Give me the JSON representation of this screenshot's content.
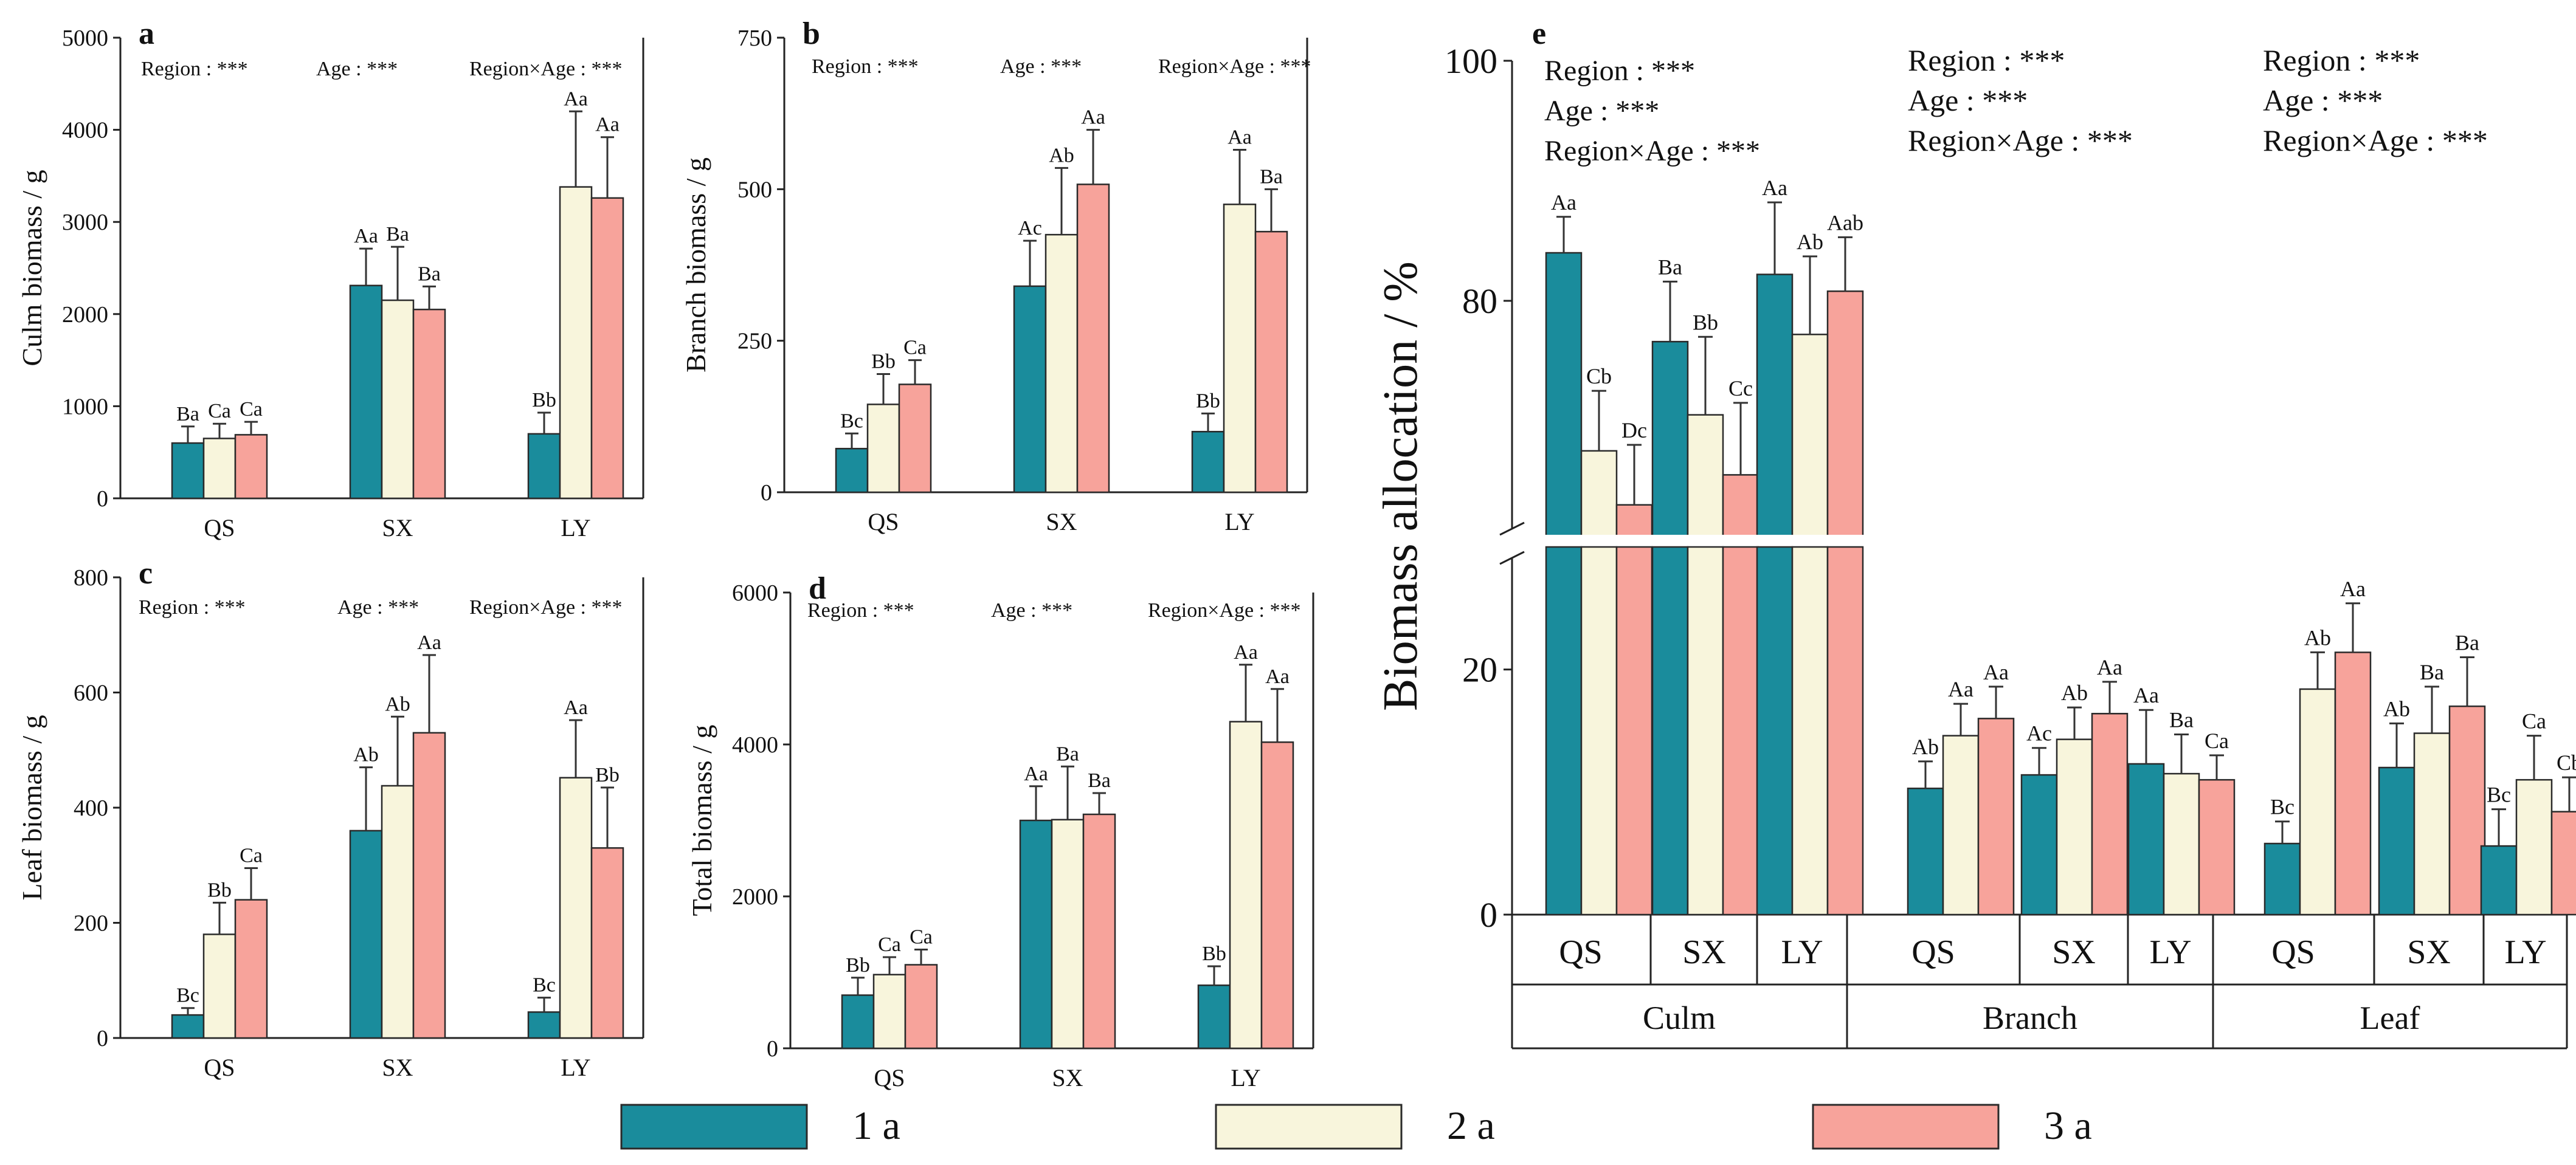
{
  "legend": {
    "items": [
      {
        "label": "1 a",
        "color": "#1a8c9c"
      },
      {
        "label": "2 a",
        "color": "#f8f5dc"
      },
      {
        "label": "3 a",
        "color": "#f7a39b"
      }
    ]
  },
  "chart_data": [
    {
      "id": "a",
      "panel_label": "a",
      "type": "bar",
      "ylabel": "Culm biomass / g",
      "ylim": [
        0,
        5000
      ],
      "yticks": [
        "0",
        "1000",
        "2000",
        "3000",
        "4000",
        "5000"
      ],
      "categories": [
        "QS",
        "SX",
        "LY"
      ],
      "annotations": [
        "Region : ***",
        "Age : ***",
        "Region×Age : ***"
      ],
      "series": [
        {
          "name": "1 a",
          "values": [
            600,
            2310,
            700
          ],
          "errors": [
            180,
            400,
            230
          ],
          "letters": [
            "Ba",
            "Aa",
            "Bb"
          ]
        },
        {
          "name": "2 a",
          "values": [
            650,
            2150,
            3380
          ],
          "errors": [
            160,
            580,
            820
          ],
          "letters": [
            "Ca",
            "Ba",
            "Aa"
          ]
        },
        {
          "name": "3 a",
          "values": [
            690,
            2050,
            3260
          ],
          "errors": [
            140,
            250,
            660
          ],
          "letters": [
            "Ca",
            "Ba",
            "Aa"
          ]
        }
      ]
    },
    {
      "id": "b",
      "panel_label": "b",
      "type": "bar",
      "ylabel": "Branch biomass / g",
      "ylim": [
        0,
        750
      ],
      "yticks": [
        "0",
        "250",
        "500",
        "750"
      ],
      "categories": [
        "QS",
        "SX",
        "LY"
      ],
      "annotations": [
        "Region : ***",
        "Age : ***",
        "Region×Age : ***"
      ],
      "series": [
        {
          "name": "1 a",
          "values": [
            72,
            340,
            100
          ],
          "errors": [
            25,
            75,
            30
          ],
          "letters": [
            "Bc",
            "Ac",
            "Bb"
          ]
        },
        {
          "name": "2 a",
          "values": [
            145,
            425,
            475
          ],
          "errors": [
            50,
            110,
            90
          ],
          "letters": [
            "Bb",
            "Ab",
            "Aa"
          ]
        },
        {
          "name": "3 a",
          "values": [
            178,
            508,
            430
          ],
          "errors": [
            40,
            90,
            70
          ],
          "letters": [
            "Ca",
            "Aa",
            "Ba"
          ]
        }
      ]
    },
    {
      "id": "c",
      "panel_label": "c",
      "type": "bar",
      "ylabel": "Leaf biomass / g",
      "ylim": [
        0,
        800
      ],
      "yticks": [
        "0",
        "200",
        "400",
        "600",
        "800"
      ],
      "categories": [
        "QS",
        "SX",
        "LY"
      ],
      "annotations": [
        "Region : ***",
        "Age : ***",
        "Region×Age : ***"
      ],
      "series": [
        {
          "name": "1 a",
          "values": [
            40,
            360,
            45
          ],
          "errors": [
            12,
            110,
            25
          ],
          "letters": [
            "Bc",
            "Ab",
            "Bc"
          ]
        },
        {
          "name": "2 a",
          "values": [
            180,
            438,
            452
          ],
          "errors": [
            55,
            120,
            100
          ],
          "letters": [
            "Bb",
            "Ab",
            "Aa"
          ]
        },
        {
          "name": "3 a",
          "values": [
            240,
            530,
            330
          ],
          "errors": [
            55,
            135,
            105
          ],
          "letters": [
            "Ca",
            "Aa",
            "Bb"
          ]
        }
      ]
    },
    {
      "id": "d",
      "panel_label": "d",
      "type": "bar",
      "ylabel": "Total biomass / g",
      "ylim": [
        0,
        6000
      ],
      "yticks": [
        "0",
        "2000",
        "4000",
        "6000"
      ],
      "categories": [
        "QS",
        "SX",
        "LY"
      ],
      "annotations": [
        "Region : ***",
        "Age : ***",
        "Region×Age : ***"
      ],
      "series": [
        {
          "name": "1 a",
          "values": [
            700,
            3000,
            830
          ],
          "errors": [
            230,
            450,
            250
          ],
          "letters": [
            "Bb",
            "Aa",
            "Bb"
          ]
        },
        {
          "name": "2 a",
          "values": [
            970,
            3010,
            4300
          ],
          "errors": [
            230,
            700,
            750
          ],
          "letters": [
            "Ca",
            "Ba",
            "Aa"
          ]
        },
        {
          "name": "3 a",
          "values": [
            1100,
            3080,
            4030
          ],
          "errors": [
            200,
            280,
            700
          ],
          "letters": [
            "Ca",
            "Ba",
            "Aa"
          ]
        }
      ]
    },
    {
      "id": "e",
      "panel_label": "e",
      "type": "bar",
      "ylabel": "Biomass allocation / %",
      "y_break": {
        "lower": [
          0,
          30
        ],
        "upper": [
          60,
          100
        ]
      },
      "yticks": [
        "0",
        "20",
        "80",
        "100"
      ],
      "ytick_values": [
        0,
        20,
        80,
        100
      ],
      "groups": [
        "Culm",
        "Branch",
        "Leaf"
      ],
      "categories": [
        "QS",
        "SX",
        "LY"
      ],
      "annotations": [
        [
          "Region : ***",
          "Age : ***",
          "Region×Age : ***"
        ],
        [
          "Region : ***",
          "Age : ***",
          "Region×Age : ***"
        ],
        [
          "Region : ***",
          "Age : ***",
          "Region×Age : ***"
        ]
      ],
      "series": [
        {
          "name": "1 a",
          "values": [
            [
              84.0,
              76.6,
              82.2
            ],
            [
              10.3,
              11.4,
              12.3
            ],
            [
              5.8,
              12.0,
              5.6
            ]
          ],
          "errors": [
            [
              3.0,
              5.0,
              6.0
            ],
            [
              2.2,
              2.2,
              4.4
            ],
            [
              1.8,
              3.6,
              3.0
            ]
          ],
          "letters": [
            [
              "Aa",
              "Ba",
              "Aa"
            ],
            [
              "Ab",
              "Ac",
              "Aa"
            ],
            [
              "Bc",
              "Ab",
              "Bc"
            ]
          ]
        },
        {
          "name": "2 a",
          "values": [
            [
              67.5,
              70.5,
              77.2
            ],
            [
              14.6,
              14.3,
              11.5
            ],
            [
              18.4,
              14.8,
              11.0
            ]
          ],
          "errors": [
            [
              5.0,
              6.5,
              6.5
            ],
            [
              2.6,
              2.6,
              3.2
            ],
            [
              3.0,
              3.8,
              3.6
            ]
          ],
          "letters": [
            [
              "Cb",
              "Bb",
              "Ab"
            ],
            [
              "Aa",
              "Ab",
              "Ba"
            ],
            [
              "Ab",
              "Ba",
              "Ca"
            ]
          ]
        },
        {
          "name": "3 a",
          "values": [
            [
              63.0,
              65.5,
              80.8
            ],
            [
              16.0,
              16.4,
              11.0
            ],
            [
              21.4,
              17.0,
              8.4
            ]
          ],
          "errors": [
            [
              5.0,
              6.0,
              4.5
            ],
            [
              2.6,
              2.6,
              2.0
            ],
            [
              4.0,
              4.0,
              2.8
            ]
          ],
          "letters": [
            [
              "Dc",
              "Cc",
              "Aab"
            ],
            [
              "Aa",
              "Aa",
              "Ca"
            ],
            [
              "Aa",
              "Ba",
              "Cb"
            ]
          ]
        }
      ]
    }
  ]
}
